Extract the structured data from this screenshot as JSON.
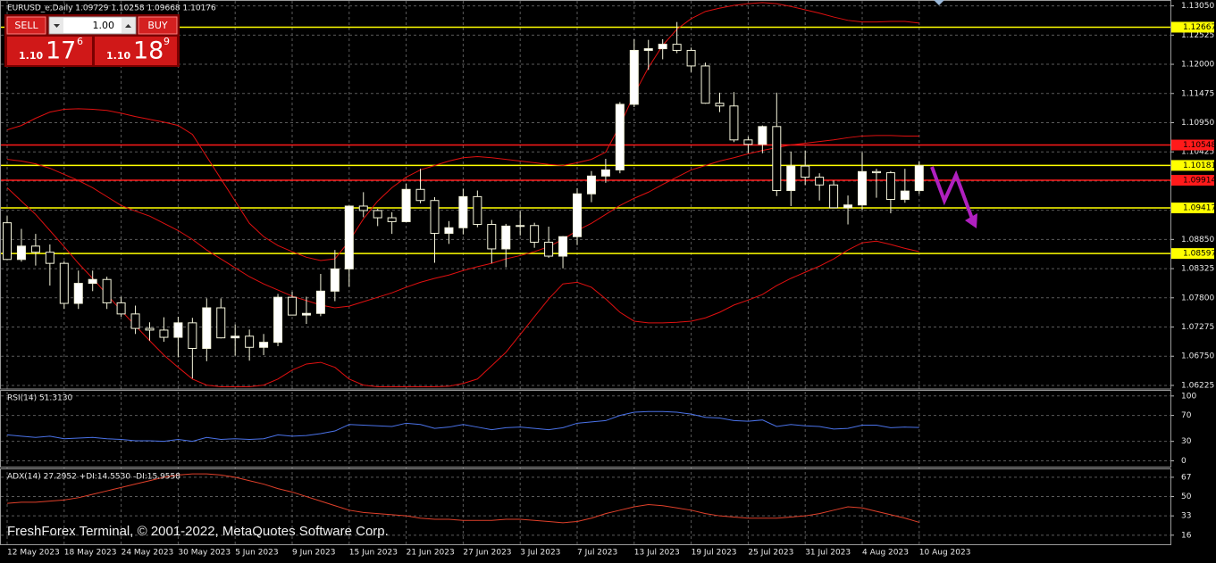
{
  "chart_data": [
    {
      "type": "candlestick",
      "title": "EURUSD_e,Daily  1.09729 1.10258 1.09668 1.10176",
      "categories": [
        "12 May 2023",
        null,
        null,
        null,
        "18 May 2023",
        null,
        null,
        null,
        "24 May 2023",
        null,
        null,
        null,
        "30 May 2023",
        null,
        null,
        null,
        "5 Jun 2023",
        null,
        null,
        null,
        "9 Jun 2023",
        null,
        null,
        null,
        "15 Jun 2023",
        null,
        null,
        null,
        "21 Jun 2023",
        null,
        null,
        null,
        "27 Jun 2023",
        null,
        null,
        null,
        "3 Jul 2023",
        null,
        null,
        null,
        "7 Jul 2023",
        null,
        null,
        null,
        "13 Jul 2023",
        null,
        null,
        null,
        "19 Jul 2023",
        null,
        null,
        null,
        "25 Jul 2023",
        null,
        null,
        null,
        "31 Jul 2023",
        null,
        null,
        null,
        "4 Aug 2023",
        null,
        null,
        null,
        "10 Aug 2023"
      ],
      "open": [
        1.0915,
        1.0849,
        1.0873,
        1.0862,
        1.0842,
        1.077,
        1.0806,
        1.0813,
        1.0771,
        1.0751,
        1.0725,
        1.0722,
        1.0709,
        1.0735,
        1.0689,
        1.0762,
        1.0708,
        1.0711,
        1.0691,
        1.07,
        1.0781,
        1.0749,
        1.0752,
        1.0792,
        1.0832,
        1.0945,
        1.0937,
        1.0924,
        1.0917,
        1.0975,
        1.0955,
        1.0896,
        1.0906,
        1.0962,
        1.0912,
        1.0868,
        1.0909,
        1.091,
        1.088,
        1.0855,
        1.089,
        1.0967,
        1.0999,
        1.101,
        1.1128,
        1.1225,
        1.1228,
        1.1236,
        1.1225,
        1.1197,
        1.113,
        1.1125,
        1.1064,
        1.1056,
        1.1088,
        1.0973,
        1.1017,
        1.0997,
        1.0983,
        1.0942,
        1.0947,
        1.1007,
        1.1005,
        1.0957,
        1.09729
      ],
      "high": [
        1.0927,
        1.0904,
        1.0895,
        1.0876,
        1.0846,
        1.0829,
        1.0829,
        1.0818,
        1.0782,
        1.0766,
        1.0736,
        1.0745,
        1.0746,
        1.0744,
        1.0779,
        1.0779,
        1.0732,
        1.0723,
        1.0715,
        1.0787,
        1.0791,
        1.0782,
        1.0823,
        1.0866,
        1.0946,
        1.097,
        1.094,
        1.0934,
        1.0985,
        1.1012,
        1.0961,
        1.0918,
        1.0976,
        1.0973,
        1.092,
        1.0913,
        1.0936,
        1.0915,
        1.0908,
        1.0891,
        1.0977,
        1.1008,
        1.103,
        1.1132,
        1.1245,
        1.1244,
        1.1245,
        1.1276,
        1.123,
        1.1203,
        1.1149,
        1.115,
        1.107,
        1.109,
        1.1149,
        1.1043,
        1.1045,
        1.1004,
        1.0991,
        1.0964,
        1.1042,
        1.1012,
        1.1008,
        1.1012,
        1.10258
      ],
      "low": [
        1.0848,
        1.0845,
        1.0838,
        1.0802,
        1.076,
        1.076,
        1.0792,
        1.076,
        1.0746,
        1.0715,
        1.0703,
        1.0701,
        1.0673,
        1.0635,
        1.0666,
        1.0707,
        1.0676,
        1.0667,
        1.0677,
        1.0693,
        1.0749,
        1.0733,
        1.0747,
        1.0774,
        1.08,
        1.0925,
        1.0909,
        1.0895,
        1.0916,
        1.095,
        1.0843,
        1.0877,
        1.0894,
        1.0907,
        1.0842,
        1.0835,
        1.0892,
        1.087,
        1.0852,
        1.0833,
        1.0875,
        1.0952,
        1.0987,
        1.1004,
        1.1123,
        1.119,
        1.1209,
        1.122,
        1.1186,
        1.1129,
        1.1114,
        1.106,
        1.104,
        1.104,
        1.0963,
        1.0945,
        1.0983,
        1.0955,
        1.0942,
        1.0912,
        1.0938,
        1.096,
        1.0932,
        1.0951,
        1.09668
      ],
      "close": [
        1.0849,
        1.0873,
        1.0862,
        1.0842,
        1.077,
        1.0806,
        1.0813,
        1.0771,
        1.0751,
        1.0725,
        1.0722,
        1.0709,
        1.0735,
        1.0689,
        1.0762,
        1.0708,
        1.0711,
        1.0691,
        1.07,
        1.0781,
        1.0749,
        1.0752,
        1.0792,
        1.0832,
        1.0945,
        1.0937,
        1.0924,
        1.0917,
        1.0975,
        1.0955,
        1.0896,
        1.0906,
        1.0962,
        1.0912,
        1.0868,
        1.0909,
        1.091,
        1.088,
        1.0855,
        1.089,
        1.0967,
        1.0999,
        1.101,
        1.1128,
        1.1225,
        1.1228,
        1.1236,
        1.1225,
        1.1197,
        1.113,
        1.1125,
        1.1064,
        1.1056,
        1.1088,
        1.0973,
        1.1017,
        1.0997,
        1.0983,
        1.0942,
        1.0947,
        1.1007,
        1.1005,
        1.0957,
        1.0972,
        1.10176
      ],
      "up_color": "#ffffff",
      "down_color": "#000000",
      "outline_color": "#f5f5dc",
      "series": [
        {
          "color": "#e01010",
          "values": [
            1.1082,
            1.109,
            1.1103,
            1.1114,
            1.1119,
            1.112,
            1.1119,
            1.1117,
            1.1112,
            1.1106,
            1.1101,
            1.1096,
            1.109,
            1.1074,
            1.1034,
            1.0994,
            1.0954,
            1.0914,
            1.089,
            1.0874,
            1.0863,
            1.0853,
            1.0847,
            1.085,
            1.0882,
            1.0922,
            1.0954,
            1.0978,
            1.0997,
            1.101,
            1.1018,
            1.1026,
            1.1032,
            1.1034,
            1.1032,
            1.1029,
            1.1026,
            1.1023,
            1.102,
            1.1018,
            1.1023,
            1.1029,
            1.1042,
            1.109,
            1.1146,
            1.1194,
            1.1234,
            1.1263,
            1.1282,
            1.1295,
            1.1301,
            1.1306,
            1.1309,
            1.1311,
            1.1309,
            1.1304,
            1.1298,
            1.1292,
            1.1285,
            1.1279,
            1.1276,
            1.1276,
            1.1277,
            1.1277,
            1.1274
          ]
        },
        {
          "color": "#e01010",
          "values": [
            1.1029,
            1.1026,
            1.1021,
            1.1013,
            1.1002,
            1.0991,
            1.0978,
            1.0962,
            1.0946,
            1.0936,
            1.0927,
            1.0914,
            1.0901,
            1.0885,
            1.0866,
            1.085,
            1.0834,
            1.0818,
            1.0805,
            1.0794,
            1.0783,
            1.0775,
            1.0767,
            1.0762,
            1.0765,
            1.0773,
            1.0781,
            1.0789,
            1.0799,
            1.0808,
            1.0815,
            1.0821,
            1.0829,
            1.0836,
            1.0842,
            1.085,
            1.0856,
            1.0863,
            1.0872,
            1.0885,
            1.0901,
            1.0914,
            1.093,
            1.0946,
            1.0959,
            1.097,
            1.0984,
            1.0997,
            1.101,
            1.1018,
            1.1026,
            1.1032,
            1.1039,
            1.1045,
            1.105,
            1.1055,
            1.1058,
            1.1061,
            1.1064,
            1.1068,
            1.1071,
            1.1072,
            1.1072,
            1.1071,
            1.1071
          ]
        },
        {
          "color": "#e01010",
          "values": [
            1.0978,
            1.0954,
            1.093,
            1.0901,
            1.0872,
            1.0842,
            1.0815,
            1.0786,
            1.0757,
            1.073,
            1.0703,
            1.0677,
            1.0655,
            1.0634,
            1.0623,
            1.062,
            1.062,
            1.062,
            1.0623,
            1.0634,
            1.065,
            1.0661,
            1.0664,
            1.0655,
            1.0634,
            1.0623,
            1.062,
            1.062,
            1.062,
            1.062,
            1.062,
            1.0621,
            1.0626,
            1.0634,
            1.0658,
            1.0682,
            1.0714,
            1.0746,
            1.0778,
            1.0805,
            1.0808,
            1.0799,
            1.0778,
            1.0754,
            1.0738,
            1.0735,
            1.0735,
            1.0736,
            1.0738,
            1.0744,
            1.0754,
            1.0767,
            1.0776,
            1.0786,
            1.0802,
            1.0815,
            1.0826,
            1.0837,
            1.085,
            1.0866,
            1.0879,
            1.0882,
            1.0876,
            1.0869,
            1.0863
          ]
        }
      ],
      "levels": [
        {
          "value": 1.12667,
          "color": "#ffff00"
        },
        {
          "value": 1.10548,
          "color": "#ff1a1a"
        },
        {
          "value": 1.10181,
          "color": "#ffff00"
        },
        {
          "value": 1.09914,
          "color": "#ff1a1a"
        },
        {
          "value": 1.09417,
          "color": "#ffff00"
        },
        {
          "value": 1.08597,
          "color": "#ffff00"
        }
      ],
      "ylim": [
        1.0616,
        1.1314
      ],
      "yticks": [
        {
          "value": 1.1305,
          "label": "1.13050"
        },
        1.12525,
        {
          "value": 1.12,
          "label": "1.12000"
        },
        1.11475,
        {
          "value": 1.1095,
          "label": "1.10950"
        },
        1.10425,
        {
          "value": 1.099,
          "label": "1.09900"
        },
        1.09375,
        {
          "value": 1.0885,
          "label": "1.08850"
        },
        1.08325,
        {
          "value": 1.078,
          "label": "1.07800"
        },
        1.07275,
        {
          "value": 1.0675,
          "label": "1.06750"
        },
        1.06225
      ],
      "grid": true
    },
    {
      "type": "line",
      "title": "RSI(14) 51.3130",
      "series": [
        {
          "color": "#4a72e8",
          "values": [
            40,
            38,
            36,
            38,
            34,
            35,
            36,
            34,
            33,
            31,
            31,
            30,
            33,
            30,
            36,
            33,
            34,
            33,
            34,
            40,
            38,
            39,
            42,
            46,
            56,
            55,
            54,
            53,
            58,
            56,
            50,
            52,
            56,
            52,
            48,
            51,
            52,
            50,
            48,
            51,
            58,
            60,
            62,
            70,
            75,
            76,
            76,
            75,
            72,
            67,
            66,
            62,
            61,
            63,
            53,
            56,
            54,
            53,
            49,
            50,
            55,
            55,
            51,
            52,
            51.313
          ]
        }
      ],
      "ylim": [
        -9,
        108
      ],
      "yticks": [
        0,
        30,
        70,
        100
      ],
      "grid": true
    },
    {
      "type": "line",
      "title": "ADX(14) 27.2952 +DI:14.5530 -DI:15.9558",
      "series": [
        {
          "color": "#e0402a",
          "values": [
            44,
            45,
            45,
            46,
            47,
            49,
            52,
            55,
            58,
            61,
            64,
            67,
            69,
            70,
            70,
            69,
            67,
            64,
            61,
            57,
            54,
            50,
            46,
            42,
            38,
            36,
            35,
            34,
            33,
            31,
            30,
            30,
            29,
            29,
            29,
            30,
            30,
            29,
            28,
            27,
            28,
            31,
            35,
            38,
            41,
            43,
            42,
            40,
            38,
            35,
            33,
            32,
            31,
            31,
            31,
            32,
            33,
            35,
            38,
            41,
            40,
            37,
            34,
            31,
            27.2952
          ]
        }
      ],
      "ylim": [
        8,
        74
      ],
      "yticks": [
        16,
        33,
        50,
        67
      ],
      "grid": true
    }
  ],
  "trade_panel": {
    "sell": "SELL",
    "buy": "BUY",
    "lot": "1.00",
    "bid": {
      "big": "1.10",
      "main": "17",
      "pip": "6"
    },
    "ask": {
      "big": "1.10",
      "main": "18",
      "pip": "9"
    }
  },
  "watermark": "FreshForex Terminal, © 2001-2022, MetaQuotes Software Corp."
}
